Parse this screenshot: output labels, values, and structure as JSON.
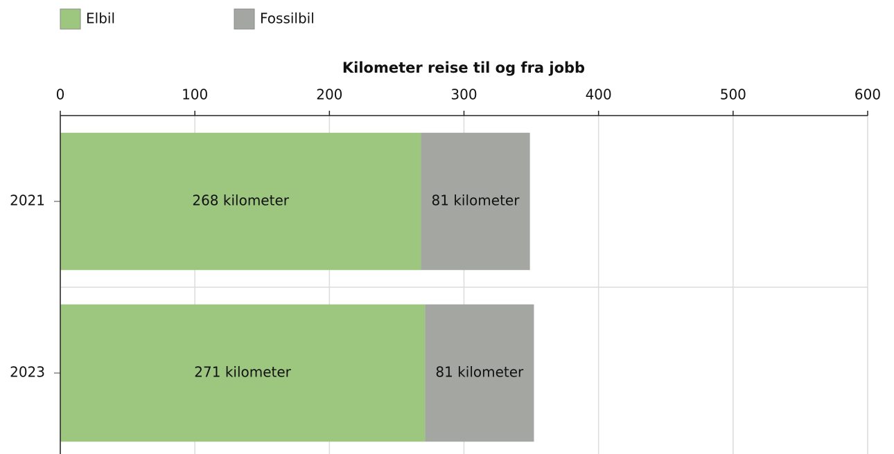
{
  "chart_data": {
    "type": "stacked-bar-horizontal",
    "title": "Kilometer reise til og fra jobb",
    "categories": [
      "2021",
      "2023"
    ],
    "series": [
      {
        "name": "Elbil",
        "color": "#9dc67f",
        "values": [
          268,
          271
        ],
        "value_labels": [
          "268 kilometer",
          "271 kilometer"
        ]
      },
      {
        "name": "Fossilbil",
        "color": "#a4a6a1",
        "values": [
          81,
          81
        ],
        "value_labels": [
          "81 kilometer",
          "81 kilometer"
        ]
      }
    ],
    "xlim": [
      0,
      600
    ],
    "xticks": [
      0,
      100,
      200,
      300,
      400,
      500,
      600
    ],
    "grid": true
  }
}
